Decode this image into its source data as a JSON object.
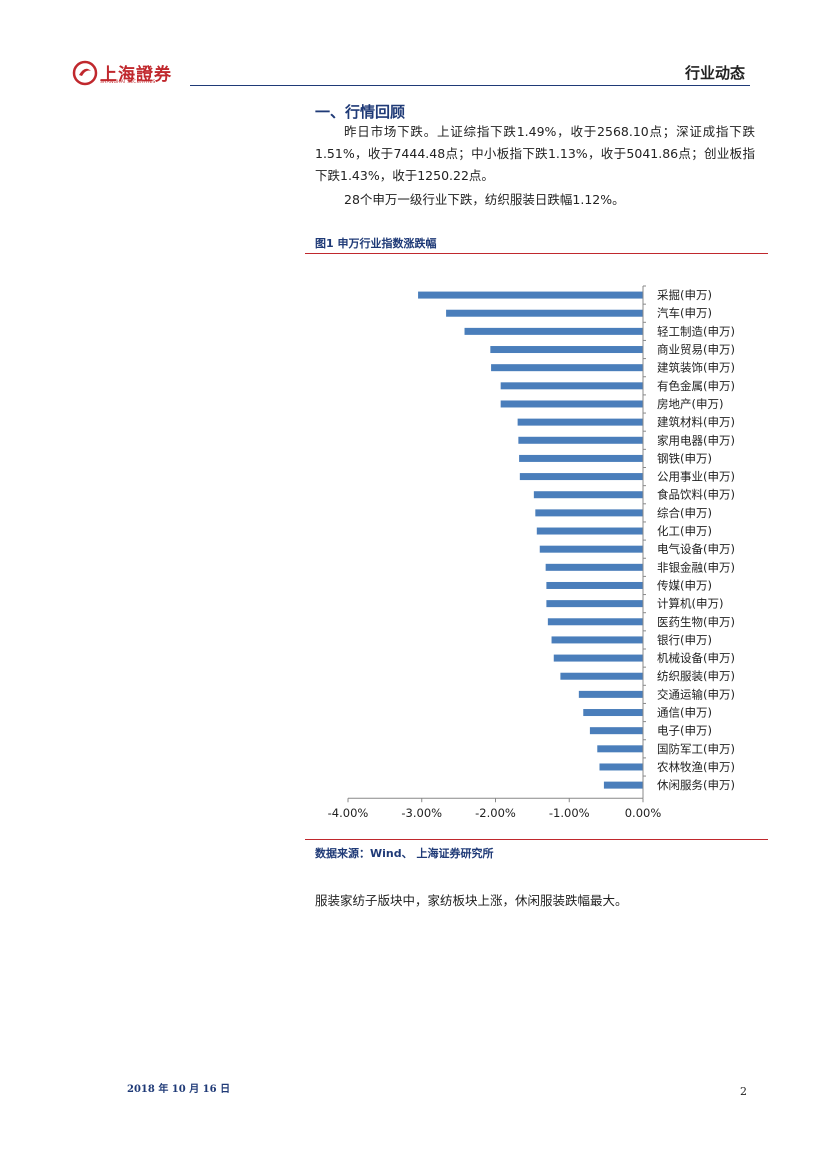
{
  "header": {
    "logo_text": "上海證券",
    "logo_subtext": "SHANGHAI SECURITIES",
    "title": "行业动态"
  },
  "section": {
    "title": "一、行情回顾",
    "para1": "昨日市场下跌。上证综指下跌1.49%，收于2568.10点；深证成指下跌1.51%，收于7444.48点；中小板指下跌1.13%，收于5041.86点；创业板指下跌1.43%，收于1250.22点。",
    "para2": "28个申万一级行业下跌，纺织服装日跌幅1.12%。"
  },
  "figure": {
    "title": "图1 申万行业指数涨跌幅",
    "source": "数据来源：Wind、 上海证券研究所"
  },
  "chart_data": {
    "type": "bar",
    "orientation": "horizontal",
    "bar_color": "#4a7ebb",
    "xlim": [
      -0.04,
      0
    ],
    "x_ticks": [
      "-4.00%",
      "-3.00%",
      "-2.00%",
      "-1.00%",
      "0.00%"
    ],
    "x_tick_values": [
      -0.04,
      -0.03,
      -0.02,
      -0.01,
      0
    ],
    "categories": [
      "采掘(申万)",
      "汽车(申万)",
      "轻工制造(申万)",
      "商业贸易(申万)",
      "建筑装饰(申万)",
      "有色金属(申万)",
      "房地产(申万)",
      "建筑材料(申万)",
      "家用电器(申万)",
      "钢铁(申万)",
      "公用事业(申万)",
      "食品饮料(申万)",
      "综合(申万)",
      "化工(申万)",
      "电气设备(申万)",
      "非银金融(申万)",
      "传媒(申万)",
      "计算机(申万)",
      "医药生物(申万)",
      "银行(申万)",
      "机械设备(申万)",
      "纺织服装(申万)",
      "交通运输(申万)",
      "通信(申万)",
      "电子(申万)",
      "国防军工(申万)",
      "农林牧渔(申万)",
      "休闲服务(申万)"
    ],
    "values": [
      -0.0305,
      -0.0267,
      -0.0242,
      -0.0207,
      -0.0206,
      -0.0193,
      -0.0193,
      -0.017,
      -0.0169,
      -0.0168,
      -0.0167,
      -0.0148,
      -0.0146,
      -0.0144,
      -0.014,
      -0.0132,
      -0.0131,
      -0.0131,
      -0.0129,
      -0.0124,
      -0.0121,
      -0.0112,
      -0.0087,
      -0.0081,
      -0.0072,
      -0.0062,
      -0.0059,
      -0.0053
    ]
  },
  "after_chart": "服装家纺子版块中，家纺板块上涨，休闲服装跌幅最大。",
  "footer": {
    "date": "2018 年 10 月 16 日",
    "page": "2"
  }
}
